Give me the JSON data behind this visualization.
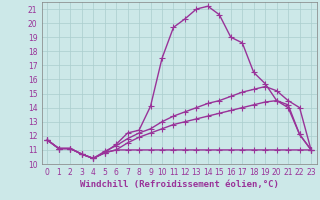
{
  "xlabel": "Windchill (Refroidissement éolien,°C)",
  "bg_color": "#cce8e8",
  "grid_color": "#aacece",
  "line_color": "#993399",
  "xlim": [
    -0.5,
    23.5
  ],
  "ylim": [
    10,
    21.5
  ],
  "xticks": [
    0,
    1,
    2,
    3,
    4,
    5,
    6,
    7,
    8,
    9,
    10,
    11,
    12,
    13,
    14,
    15,
    16,
    17,
    18,
    19,
    20,
    21,
    22,
    23
  ],
  "yticks": [
    10,
    11,
    12,
    13,
    14,
    15,
    16,
    17,
    18,
    19,
    20,
    21
  ],
  "line1_x": [
    0,
    1,
    2,
    3,
    4,
    5,
    6,
    7,
    8,
    9,
    10,
    11,
    12,
    13,
    14,
    15,
    16,
    17,
    18,
    19,
    20,
    21,
    22,
    23
  ],
  "line1_y": [
    11.7,
    11.1,
    11.1,
    10.7,
    10.4,
    10.8,
    11.4,
    12.2,
    12.4,
    14.1,
    17.5,
    19.7,
    20.3,
    21.0,
    21.2,
    20.6,
    19.0,
    18.6,
    16.5,
    15.7,
    14.5,
    14.0,
    12.1,
    11.0
  ],
  "line2_x": [
    0,
    1,
    2,
    3,
    4,
    5,
    6,
    7,
    8,
    9,
    10,
    11,
    12,
    13,
    14,
    15,
    16,
    17,
    18,
    19,
    20,
    21,
    22,
    23
  ],
  "line2_y": [
    11.7,
    11.1,
    11.1,
    10.7,
    10.4,
    10.9,
    11.3,
    11.8,
    12.2,
    12.5,
    13.0,
    13.4,
    13.7,
    14.0,
    14.3,
    14.5,
    14.8,
    15.1,
    15.3,
    15.5,
    15.2,
    14.5,
    14.0,
    11.0
  ],
  "line3_x": [
    0,
    1,
    2,
    3,
    4,
    5,
    6,
    7,
    8,
    9,
    10,
    11,
    12,
    13,
    14,
    15,
    16,
    17,
    18,
    19,
    20,
    21,
    22,
    23
  ],
  "line3_y": [
    11.7,
    11.1,
    11.1,
    10.7,
    10.4,
    10.8,
    11.0,
    11.5,
    11.9,
    12.2,
    12.5,
    12.8,
    13.0,
    13.2,
    13.4,
    13.6,
    13.8,
    14.0,
    14.2,
    14.4,
    14.5,
    14.2,
    12.1,
    11.0
  ],
  "line4_x": [
    0,
    1,
    2,
    3,
    4,
    5,
    6,
    7,
    8,
    9,
    10,
    11,
    12,
    13,
    14,
    15,
    16,
    17,
    18,
    19,
    20,
    21,
    22,
    23
  ],
  "line4_y": [
    11.7,
    11.1,
    11.1,
    10.7,
    10.4,
    10.8,
    11.0,
    11.0,
    11.0,
    11.0,
    11.0,
    11.0,
    11.0,
    11.0,
    11.0,
    11.0,
    11.0,
    11.0,
    11.0,
    11.0,
    11.0,
    11.0,
    11.0,
    11.0
  ],
  "marker_style": "+",
  "marker_size": 4,
  "linewidth": 1.0,
  "tick_fontsize": 5.5,
  "xlabel_fontsize": 6.5
}
